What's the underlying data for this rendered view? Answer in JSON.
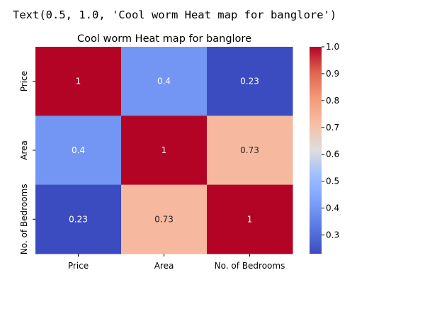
{
  "output_text": "Text(0.5, 1.0, 'Cool worm Heat map for banglore')",
  "chart_data": {
    "type": "heatmap",
    "title": "Cool worm Heat map for banglore",
    "x_labels": [
      "Price",
      "Area",
      "No. of Bedrooms"
    ],
    "y_labels": [
      "Price",
      "Area",
      "No. of Bedrooms"
    ],
    "values": [
      [
        1,
        0.4,
        0.23
      ],
      [
        0.4,
        1,
        0.73
      ],
      [
        0.23,
        0.73,
        1
      ]
    ],
    "annotations": [
      [
        "1",
        "0.4",
        "0.23"
      ],
      [
        "0.4",
        "1",
        "0.73"
      ],
      [
        "0.23",
        "0.73",
        "1"
      ]
    ],
    "colormap": "coolwarm",
    "vmin": 0.23,
    "vmax": 1.0,
    "colorbar_ticks": [
      "1.0",
      "0.9",
      "0.8",
      "0.7",
      "0.6",
      "0.5",
      "0.4",
      "0.3"
    ],
    "colorbar_tick_values": [
      1.0,
      0.9,
      0.8,
      0.7,
      0.6,
      0.5,
      0.4,
      0.3
    ]
  }
}
